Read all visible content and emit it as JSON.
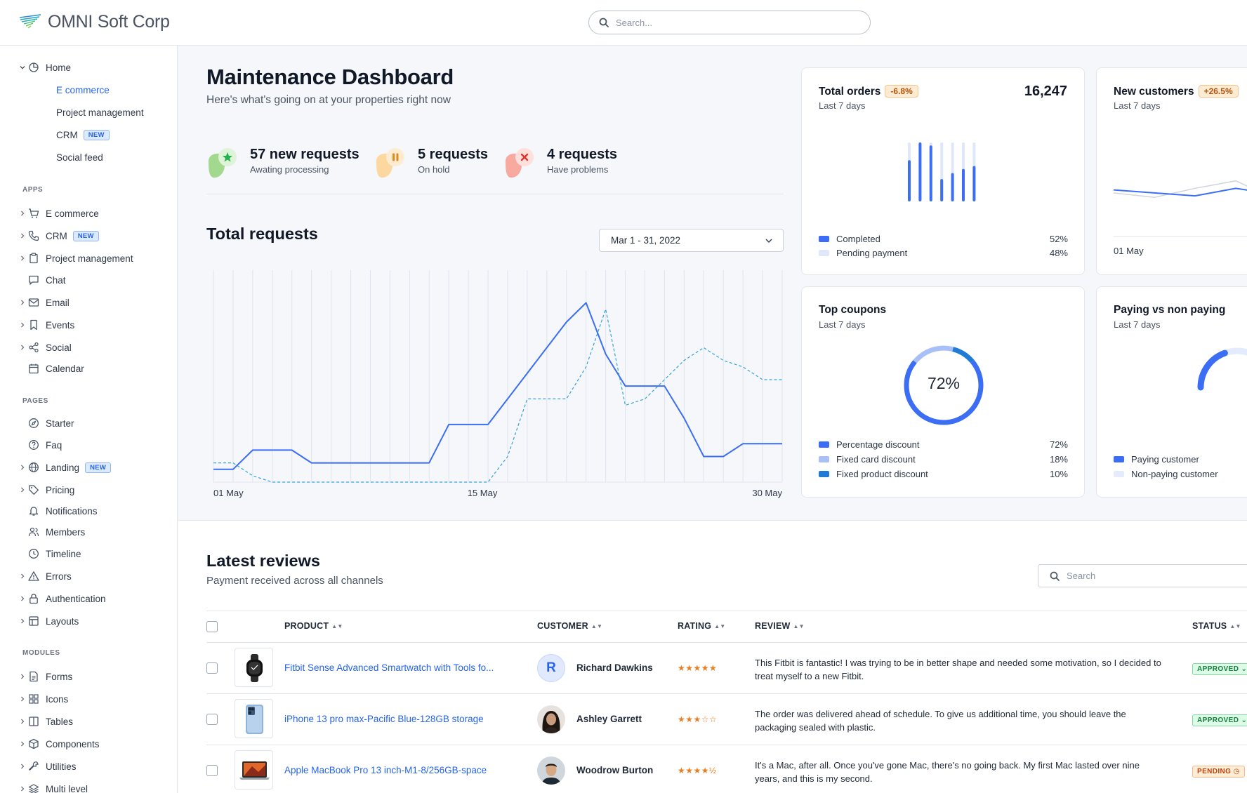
{
  "app": {
    "brand": "OMNI Soft Corp",
    "search_placeholder": "Search..."
  },
  "sidebar": {
    "home": {
      "label": "Home",
      "children": [
        {
          "label": "E commerce"
        },
        {
          "label": "Project management"
        },
        {
          "label": "CRM",
          "badge": "NEW"
        },
        {
          "label": "Social feed"
        }
      ]
    },
    "apps_title": "APPS",
    "apps": [
      {
        "label": "E commerce"
      },
      {
        "label": "CRM",
        "badge": "NEW"
      },
      {
        "label": "Project management"
      },
      {
        "label": "Chat"
      },
      {
        "label": "Email"
      },
      {
        "label": "Events"
      },
      {
        "label": "Social"
      },
      {
        "label": "Calendar"
      }
    ],
    "pages_title": "PAGES",
    "pages": [
      {
        "label": "Starter"
      },
      {
        "label": "Faq"
      },
      {
        "label": "Landing",
        "badge": "NEW"
      },
      {
        "label": "Pricing"
      },
      {
        "label": "Notifications"
      },
      {
        "label": "Members"
      },
      {
        "label": "Timeline"
      },
      {
        "label": "Errors"
      },
      {
        "label": "Authentication"
      },
      {
        "label": "Layouts"
      }
    ],
    "modules_title": "MODULES",
    "modules": [
      {
        "label": "Forms"
      },
      {
        "label": "Icons"
      },
      {
        "label": "Tables"
      },
      {
        "label": "Components"
      },
      {
        "label": "Utilities"
      },
      {
        "label": "Multi level"
      }
    ]
  },
  "header": {
    "title": "Maintenance Dashboard",
    "subtitle": "Here's what's going on at your properties right now"
  },
  "requests": [
    {
      "count": "57 new requests",
      "caption": "Awating processing",
      "color": "#22c55e"
    },
    {
      "count": "5 requests",
      "caption": "On hold",
      "color": "#f59e0b"
    },
    {
      "count": "4 requests",
      "caption": "Have problems",
      "color": "#ef4444"
    }
  ],
  "total_requests": {
    "title": "Total requests",
    "date_range": "Mar 1 - 31, 2022"
  },
  "chart_data": [
    {
      "type": "line",
      "x": [
        1,
        2,
        3,
        4,
        5,
        6,
        7,
        8,
        9,
        10,
        11,
        12,
        13,
        14,
        15,
        16,
        17,
        18,
        19,
        20,
        21,
        22,
        23,
        24,
        25,
        26,
        27,
        28,
        29,
        30
      ],
      "x_tick_labels": [
        "01 May",
        "15 May",
        "30 May"
      ],
      "series": [
        {
          "style": "solid",
          "color": "#3b6ef5",
          "values": [
            2,
            2,
            5,
            5,
            5,
            3,
            3,
            3,
            3,
            3,
            3,
            3,
            9,
            9,
            9,
            13,
            17,
            21,
            25,
            28,
            20,
            15,
            15,
            15,
            10,
            4,
            4,
            6,
            6,
            6
          ]
        },
        {
          "style": "dashed",
          "color": "#34a2d6",
          "values": [
            3,
            3,
            1,
            0,
            0,
            0,
            0,
            0,
            0,
            0,
            0,
            0,
            0,
            0,
            0,
            4,
            13,
            13,
            13,
            18,
            27,
            12,
            13,
            16,
            19,
            21,
            19,
            18,
            16,
            16
          ]
        }
      ]
    },
    {
      "type": "bar",
      "title": "Total orders",
      "categories": [
        "1",
        "2",
        "3",
        "4",
        "5",
        "6",
        "7"
      ],
      "series": [
        {
          "name": "Completed",
          "values": [
            70,
            100,
            95,
            38,
            48,
            55,
            60
          ]
        },
        {
          "name": "Pending payment",
          "values": [
            30,
            0,
            5,
            62,
            52,
            45,
            40
          ]
        }
      ]
    },
    {
      "type": "line",
      "title": "New customers",
      "x_tick_labels": [
        "01 May"
      ],
      "series": [
        {
          "values": [
            48,
            44,
            40,
            50,
            42,
            58
          ]
        },
        {
          "values": [
            44,
            38,
            50,
            60,
            35,
            30
          ]
        }
      ]
    },
    {
      "type": "pie",
      "title": "Top coupons",
      "center_label": "72%",
      "slices": [
        {
          "name": "Percentage discount",
          "value": 72
        },
        {
          "name": "Fixed card discount",
          "value": 18
        },
        {
          "name": "Fixed product discount",
          "value": 10
        }
      ]
    },
    {
      "type": "pie",
      "title": "Paying vs non paying",
      "slices": [
        {
          "name": "Paying customer",
          "value": 30
        },
        {
          "name": "Non-paying customer",
          "value": 70
        }
      ]
    }
  ],
  "cards": {
    "total_orders": {
      "title": "Total orders",
      "badge": "-6.8%",
      "subtitle": "Last 7 days",
      "value": "16,247",
      "legend": [
        {
          "label": "Completed",
          "value": "52%",
          "color": "#3b6ef5"
        },
        {
          "label": "Pending payment",
          "value": "48%",
          "color": "#dfe7fb"
        }
      ]
    },
    "new_customers": {
      "title": "New customers",
      "badge": "+26.5%",
      "subtitle": "Last 7 days",
      "x_label": "01 May"
    },
    "top_coupons": {
      "title": "Top coupons",
      "subtitle": "Last 7 days",
      "center": "72%",
      "legend": [
        {
          "label": "Percentage discount",
          "value": "72%",
          "color": "#3b6ef5"
        },
        {
          "label": "Fixed card discount",
          "value": "18%",
          "color": "#a9bff7"
        },
        {
          "label": "Fixed product discount",
          "value": "10%",
          "color": "#1f7bd6"
        }
      ]
    },
    "paying": {
      "title": "Paying vs non paying",
      "subtitle": "Last 7 days",
      "legend": [
        {
          "label": "Paying customer",
          "color": "#3b6ef5"
        },
        {
          "label": "Non-paying customer",
          "color": "#e3ebfd"
        }
      ]
    }
  },
  "reviews": {
    "title": "Latest reviews",
    "subtitle": "Payment received across all channels",
    "search_placeholder": "Search",
    "columns": {
      "product": "PRODUCT",
      "customer": "CUSTOMER",
      "rating": "RATING",
      "review": "REVIEW",
      "status": "STATUS"
    },
    "rows": [
      {
        "product": "Fitbit Sense Advanced Smartwatch with Tools fo...",
        "customer": "Richard Dawkins",
        "avatar_initial": "R",
        "rating": "★★★★★",
        "review": "This Fitbit is fantastic! I was trying to be in better shape and needed some motivation, so I decided to treat myself to a new Fitbit.",
        "status": "APPROVED ⌄"
      },
      {
        "product": "iPhone 13 pro max-Pacific Blue-128GB storage",
        "customer": "Ashley Garrett",
        "rating": "★★★☆☆",
        "review": "The order was delivered ahead of schedule. To give us additional time, you should leave the packaging sealed with plastic.",
        "status": "APPROVED ⌄"
      },
      {
        "product": "Apple MacBook Pro 13 inch-M1-8/256GB-space",
        "customer": "Woodrow Burton",
        "rating": "★★★★½",
        "review": "It's a Mac, after all. Once you've gone Mac, there's no going back. My first Mac lasted over nine years, and this is my second.",
        "status": "PENDING ◷"
      }
    ]
  }
}
